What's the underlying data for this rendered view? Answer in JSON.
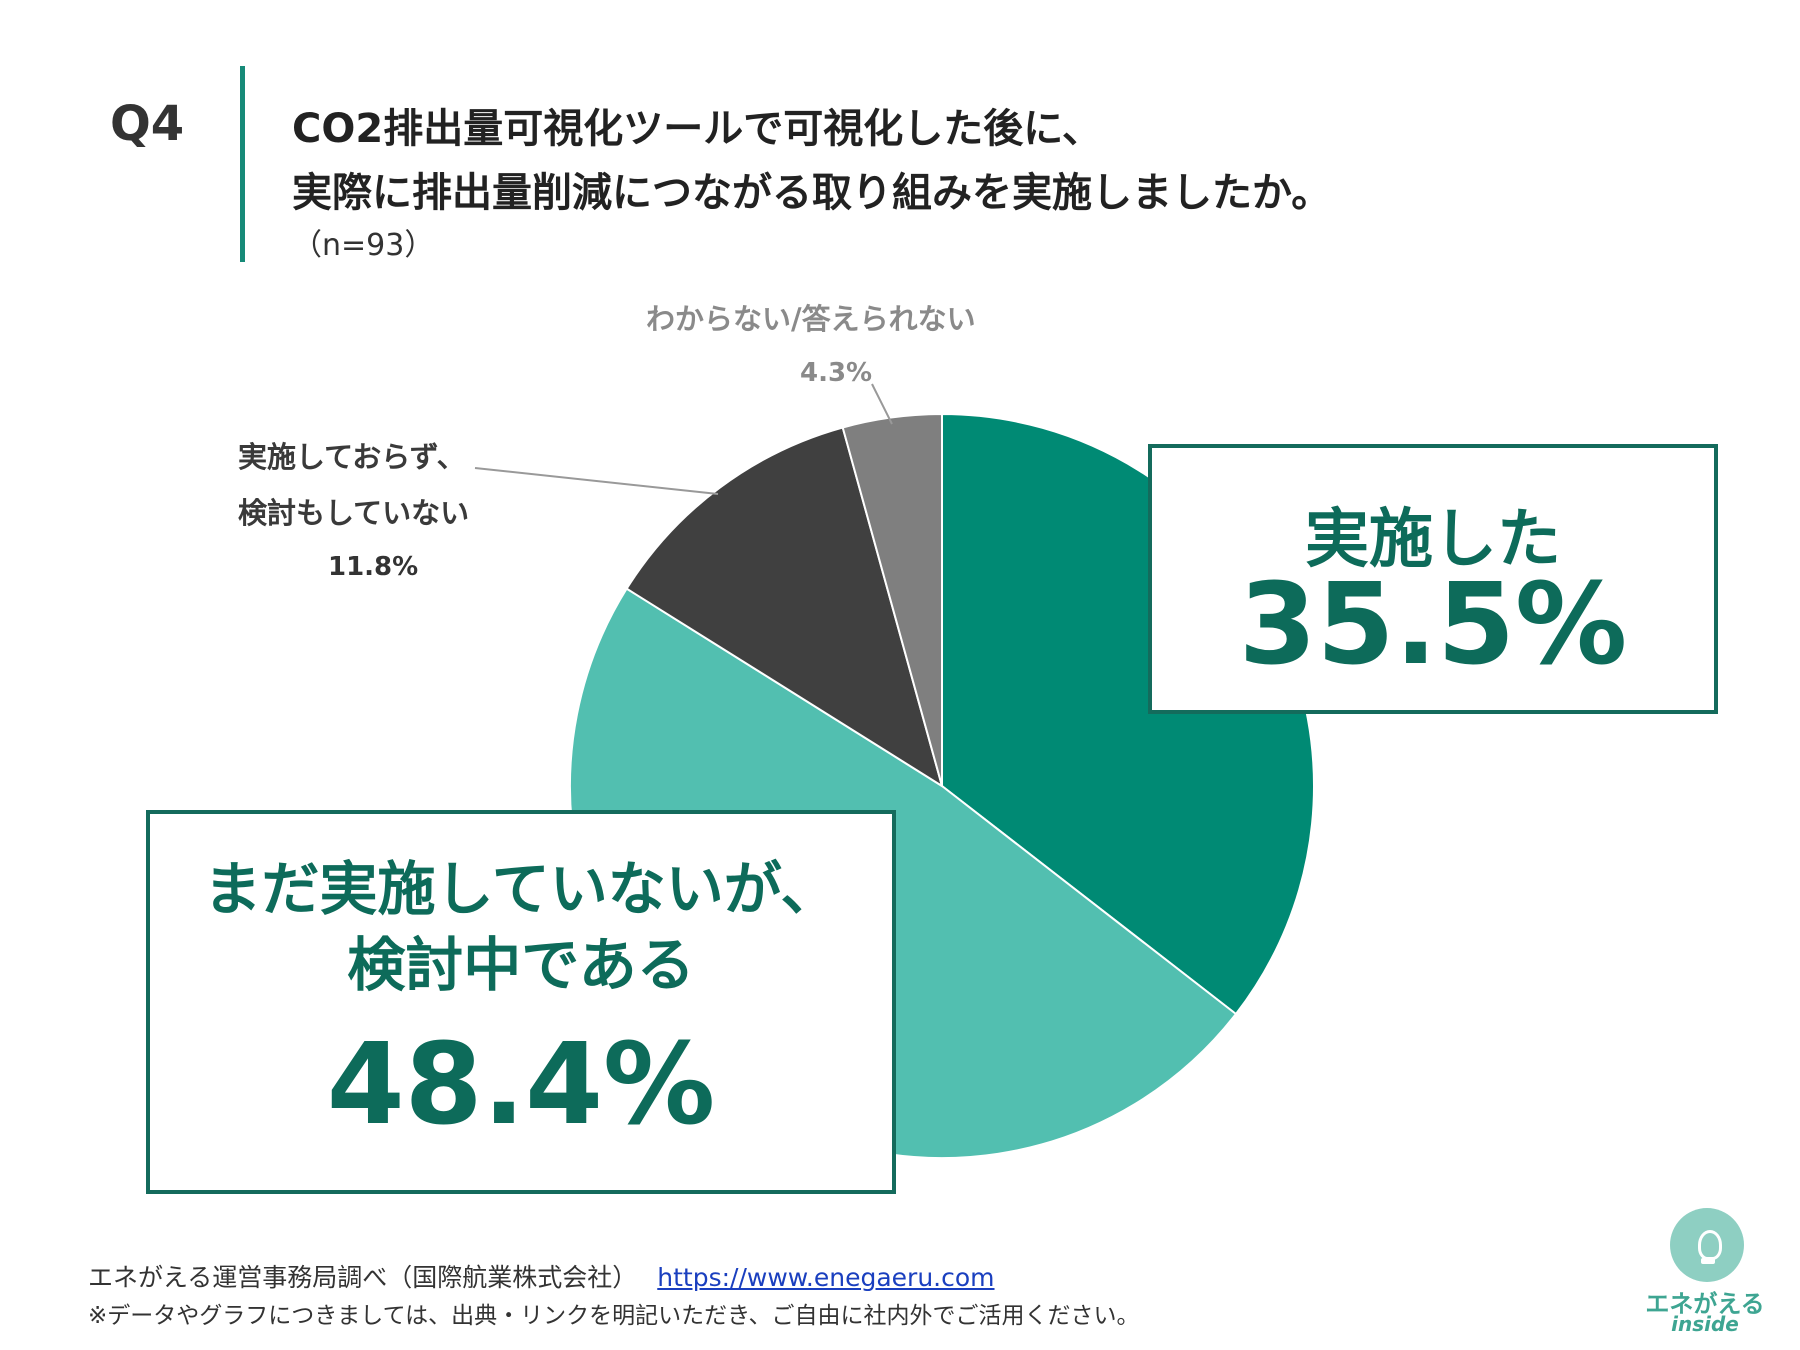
{
  "question": {
    "number": "Q4",
    "line1": "CO2排出量可視化ツールで可視化した後に、",
    "line2": "実際に排出量削減につながる取り組みを実施しましたか。",
    "sample": "（n=93）"
  },
  "chart_data": {
    "type": "pie",
    "start_angle_deg": 0,
    "direction": "clockwise",
    "slices": [
      {
        "label": "実施した",
        "value": 35.5,
        "display": "35.5%",
        "color": "#008a74"
      },
      {
        "label": "まだ実施していないが、検討中である",
        "label_line1": "まだ実施していないが、",
        "label_line2": "検討中である",
        "value": 48.4,
        "display": "48.4%",
        "color": "#52bfb0"
      },
      {
        "label": "実施しておらず、検討もしていない",
        "label_line1": "実施しておらず、",
        "label_line2": "検討もしていない",
        "value": 11.8,
        "display": "11.8%",
        "color": "#404040"
      },
      {
        "label": "わからない/答えられない",
        "value": 4.3,
        "display": "4.3%",
        "color": "#7f7f7f"
      }
    ]
  },
  "footer": {
    "source": "エネがえる運営事務局調べ（国際航業株式会社）",
    "url": "https://www.enegaeru.com",
    "note": "※データやグラフにつきましては、出典・リンクを明記いただき、ご自由に社内外でご活用ください。"
  },
  "logo": {
    "text": "エネがえる",
    "sub": "inside"
  }
}
